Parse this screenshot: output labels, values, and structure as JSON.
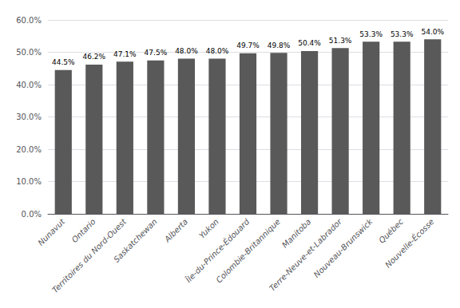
{
  "chart_data": {
    "type": "bar",
    "categories": [
      "Nunavut",
      "Ontario",
      "Territoires du Nord-Ouest",
      "Saskatchewan",
      "Alberta",
      "Yukon",
      "Île-du-Prince-Édouard",
      "Colombie-Britannique",
      "Manitoba",
      "Terre-Neuve-et-Labrador",
      "Nouveau-Brunswick",
      "Québec",
      "Nouvelle-Écosse"
    ],
    "values": [
      0.445,
      0.462,
      0.471,
      0.475,
      0.48,
      0.48,
      0.497,
      0.498,
      0.504,
      0.513,
      0.533,
      0.533,
      0.54
    ],
    "value_labels": [
      "44.5%",
      "46.2%",
      "47.1%",
      "47.5%",
      "48.0%",
      "48.0%",
      "49.7%",
      "49.8%",
      "50.4%",
      "51.3%",
      "53.3%",
      "53.3%",
      "54.0%"
    ],
    "data_labels": true,
    "color": "#595959",
    "ylim": [
      0.0,
      0.6
    ],
    "yticks": [
      {
        "value": 0.0,
        "label": "0.0%"
      },
      {
        "value": 0.1,
        "label": "10.0%"
      },
      {
        "value": 0.2,
        "label": "20.0%"
      },
      {
        "value": 0.3,
        "label": "30.0%"
      },
      {
        "value": 0.4,
        "label": "40.0%"
      },
      {
        "value": 0.5,
        "label": "50.0%"
      },
      {
        "value": 0.6,
        "label": "60.0%"
      }
    ],
    "grid": true
  }
}
